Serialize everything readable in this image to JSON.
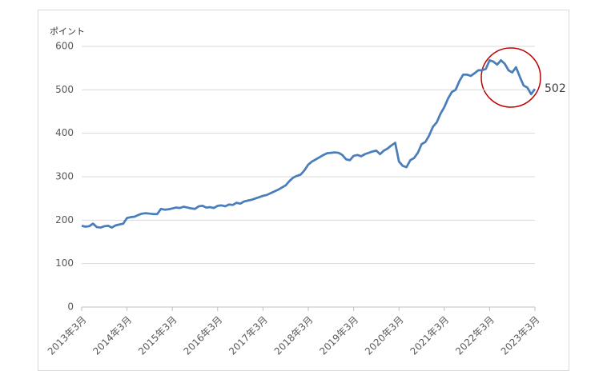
{
  "chart_data": {
    "type": "line",
    "y_label": "ポイント",
    "categories": [
      "2013年3月",
      null,
      null,
      null,
      null,
      null,
      null,
      null,
      null,
      null,
      null,
      null,
      "2014年3月",
      null,
      null,
      null,
      null,
      null,
      null,
      null,
      null,
      null,
      null,
      null,
      "2015年3月",
      null,
      null,
      null,
      null,
      null,
      null,
      null,
      null,
      null,
      null,
      null,
      "2016年3月",
      null,
      null,
      null,
      null,
      null,
      null,
      null,
      null,
      null,
      null,
      null,
      "2017年3月",
      null,
      null,
      null,
      null,
      null,
      null,
      null,
      null,
      null,
      null,
      null,
      "2018年3月",
      null,
      null,
      null,
      null,
      null,
      null,
      null,
      null,
      null,
      null,
      null,
      "2019年3月",
      null,
      null,
      null,
      null,
      null,
      null,
      null,
      null,
      null,
      null,
      null,
      "2020年3月",
      null,
      null,
      null,
      null,
      null,
      null,
      null,
      null,
      null,
      null,
      null,
      "2021年3月",
      null,
      null,
      null,
      null,
      null,
      null,
      null,
      null,
      null,
      null,
      null,
      "2022年3月",
      null,
      null,
      null,
      null,
      null,
      null,
      null,
      null,
      null,
      null,
      null,
      "2023年3月"
    ],
    "values": [
      187,
      185,
      186,
      192,
      184,
      183,
      186,
      187,
      183,
      188,
      190,
      192,
      205,
      207,
      208,
      212,
      215,
      216,
      215,
      214,
      214,
      226,
      224,
      225,
      227,
      229,
      228,
      231,
      229,
      227,
      226,
      232,
      233,
      229,
      230,
      228,
      233,
      234,
      232,
      236,
      235,
      240,
      238,
      243,
      245,
      247,
      250,
      253,
      256,
      258,
      262,
      266,
      270,
      275,
      280,
      290,
      298,
      302,
      305,
      315,
      328,
      335,
      340,
      345,
      350,
      354,
      355,
      356,
      355,
      350,
      340,
      338,
      348,
      350,
      347,
      352,
      355,
      358,
      360,
      352,
      360,
      365,
      372,
      378,
      335,
      325,
      322,
      338,
      343,
      355,
      375,
      380,
      395,
      415,
      425,
      445,
      460,
      480,
      495,
      500,
      520,
      535,
      535,
      532,
      538,
      545,
      545,
      548,
      568,
      565,
      558,
      568,
      560,
      545,
      540,
      552,
      530,
      510,
      505,
      490,
      502
    ],
    "color": "#4a7ebb",
    "ylim": [
      0,
      600
    ],
    "yticks": [
      0,
      100,
      200,
      300,
      400,
      500,
      600
    ],
    "grid": true
  }
}
